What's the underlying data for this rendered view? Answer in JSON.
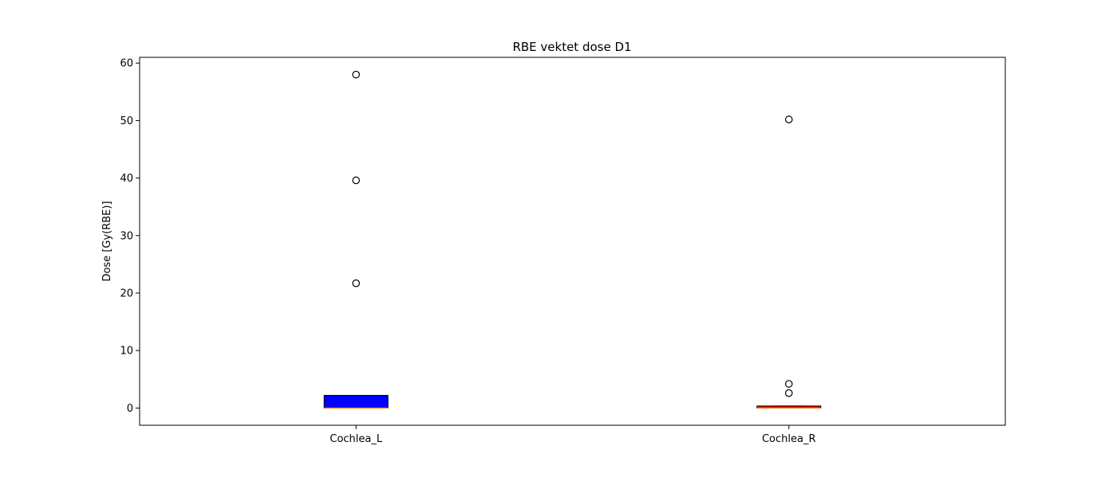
{
  "chart_data": {
    "type": "box",
    "title": "RBE vektet dose D1",
    "xlabel": "",
    "ylabel": "Dose [Gy(RBE)]",
    "categories": [
      "Cochlea_L",
      "Cochlea_R"
    ],
    "ylim": [
      -3,
      61
    ],
    "yticks": [
      0,
      10,
      20,
      30,
      40,
      50,
      60
    ],
    "grid": false,
    "boxes": [
      {
        "name": "Cochlea_L",
        "whisker_low": 0.0,
        "q1": 0.0,
        "median": 0.0,
        "q3": 2.2,
        "whisker_high": 2.2,
        "outliers": [
          58.0,
          39.6,
          21.7
        ],
        "box_color": "#0000ff",
        "median_color": "#ff7f0e"
      },
      {
        "name": "Cochlea_R",
        "whisker_low": 0.0,
        "q1": 0.0,
        "median": 0.0,
        "q3": 0.35,
        "whisker_high": 0.35,
        "outliers": [
          50.2,
          4.2,
          2.6
        ],
        "box_color": "#ff0000",
        "median_color": "#ff7f0e"
      }
    ]
  }
}
